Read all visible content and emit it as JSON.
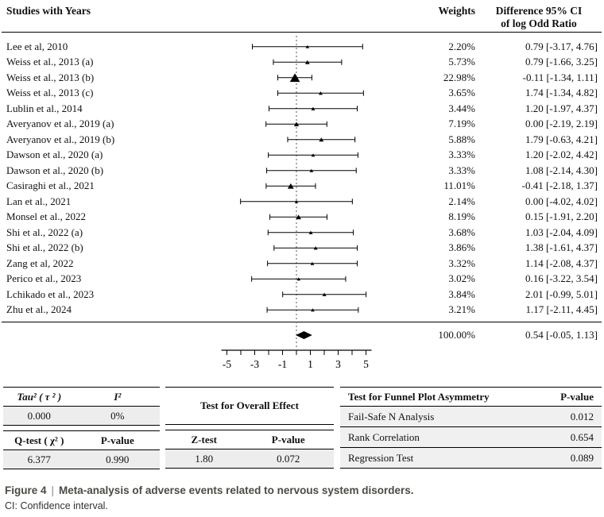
{
  "header": {
    "studies_col": "Studies with Years",
    "weights_col": "Weights",
    "ci_col_line1": "Difference 95% CI",
    "ci_col_line2": "of log Odd Ratio"
  },
  "chart_data": {
    "type": "forest",
    "xlabel": "",
    "x_axis": {
      "labeled_ticks": [
        -5,
        -3,
        -1,
        1,
        3,
        5
      ],
      "tick_step": 1,
      "range": [
        -5.4,
        5.4
      ],
      "zero_line": 0
    },
    "studies": [
      {
        "label": "Lee et al, 2010",
        "weight_pct": 2.2,
        "weight_label": "2.20%",
        "est": 0.79,
        "lo": -3.17,
        "hi": 4.76,
        "ci_label": "0.79 [-3.17, 4.76]"
      },
      {
        "label": "Weiss et al., 2013 (a)",
        "weight_pct": 5.73,
        "weight_label": "5.73%",
        "est": 0.79,
        "lo": -1.66,
        "hi": 3.25,
        "ci_label": "0.79 [-1.66, 3.25]"
      },
      {
        "label": "Weiss et al., 2013 (b)",
        "weight_pct": 22.98,
        "weight_label": "22.98%",
        "est": -0.11,
        "lo": -1.34,
        "hi": 1.11,
        "ci_label": "-0.11 [-1.34, 1.11]"
      },
      {
        "label": "Weiss et al., 2013 (c)",
        "weight_pct": 3.65,
        "weight_label": "3.65%",
        "est": 1.74,
        "lo": -1.34,
        "hi": 4.82,
        "ci_label": "1.74 [-1.34, 4.82]"
      },
      {
        "label": "Lublin et al., 2014",
        "weight_pct": 3.44,
        "weight_label": "3.44%",
        "est": 1.2,
        "lo": -1.97,
        "hi": 4.37,
        "ci_label": "1.20 [-1.97, 4.37]"
      },
      {
        "label": "Averyanov et al., 2019 (a)",
        "weight_pct": 7.19,
        "weight_label": "7.19%",
        "est": 0.0,
        "lo": -2.19,
        "hi": 2.19,
        "ci_label": "0.00 [-2.19, 2.19]"
      },
      {
        "label": "Averyanov et al., 2019 (b)",
        "weight_pct": 5.88,
        "weight_label": "5.88%",
        "est": 1.79,
        "lo": -0.63,
        "hi": 4.21,
        "ci_label": "1.79 [-0.63, 4.21]"
      },
      {
        "label": "Dawson et al., 2020 (a)",
        "weight_pct": 3.33,
        "weight_label": "3.33%",
        "est": 1.2,
        "lo": -2.02,
        "hi": 4.42,
        "ci_label": "1.20 [-2.02, 4.42]"
      },
      {
        "label": "Dawson et al., 2020 (b)",
        "weight_pct": 3.33,
        "weight_label": "3.33%",
        "est": 1.08,
        "lo": -2.14,
        "hi": 4.3,
        "ci_label": "1.08 [-2.14, 4.30]"
      },
      {
        "label": "Casiraghi et al., 2021",
        "weight_pct": 11.01,
        "weight_label": "11.01%",
        "est": -0.41,
        "lo": -2.18,
        "hi": 1.37,
        "ci_label": "-0.41 [-2.18, 1.37]"
      },
      {
        "label": "Lan et al., 2021",
        "weight_pct": 2.14,
        "weight_label": "2.14%",
        "est": 0.0,
        "lo": -4.02,
        "hi": 4.02,
        "ci_label": "0.00 [-4.02, 4.02]"
      },
      {
        "label": "Monsel et al., 2022",
        "weight_pct": 8.19,
        "weight_label": "8.19%",
        "est": 0.15,
        "lo": -1.91,
        "hi": 2.2,
        "ci_label": "0.15 [-1.91, 2.20]"
      },
      {
        "label": "Shi et al., 2022 (a)",
        "weight_pct": 3.68,
        "weight_label": "3.68%",
        "est": 1.03,
        "lo": -2.04,
        "hi": 4.09,
        "ci_label": "1.03 [-2.04, 4.09]"
      },
      {
        "label": "Shi et al., 2022 (b)",
        "weight_pct": 3.86,
        "weight_label": "3.86%",
        "est": 1.38,
        "lo": -1.61,
        "hi": 4.37,
        "ci_label": "1.38 [-1.61, 4.37]"
      },
      {
        "label": "Zang et al, 2022",
        "weight_pct": 3.32,
        "weight_label": "3.32%",
        "est": 1.14,
        "lo": -2.08,
        "hi": 4.37,
        "ci_label": "1.14 [-2.08, 4.37]"
      },
      {
        "label": "Perico et al., 2023",
        "weight_pct": 3.02,
        "weight_label": "3.02%",
        "est": 0.16,
        "lo": -3.22,
        "hi": 3.54,
        "ci_label": "0.16 [-3.22, 3.54]"
      },
      {
        "label": "Lchikado et al., 2023",
        "weight_pct": 3.84,
        "weight_label": "3.84%",
        "est": 2.01,
        "lo": -0.99,
        "hi": 5.01,
        "ci_label": "2.01 [-0.99, 5.01]"
      },
      {
        "label": "Zhu et al., 2024",
        "weight_pct": 3.21,
        "weight_label": "3.21%",
        "est": 1.17,
        "lo": -2.11,
        "hi": 4.45,
        "ci_label": "1.17 [-2.11, 4.45]"
      }
    ],
    "overall": {
      "weight_label": "100.00%",
      "est": 0.54,
      "lo": -0.05,
      "hi": 1.13,
      "ci_label": "0.54 [-0.05, 1.13]"
    }
  },
  "stats": {
    "heterogeneity": {
      "tau2_label": "Tau² ( τ ² )",
      "i2_label": "I²",
      "tau2": "0.000",
      "i2": "0%",
      "qtest_label": "Q-test ( χ² )",
      "pvalue_label": "P-value",
      "q": "6.377",
      "p": "0.990"
    },
    "overall_effect": {
      "title": "Test for Overall Effect",
      "ztest_label": "Z-test",
      "pvalue_label": "P-value",
      "z": "1.80",
      "p": "0.072"
    },
    "funnel": {
      "title": "Test for Funnel Plot Asymmetry",
      "pvalue_label": "P-value",
      "rows": [
        {
          "label": "Fail-Safe N Analysis",
          "p": "0.012"
        },
        {
          "label": "Rank Correlation",
          "p": "0.654"
        },
        {
          "label": "Regression Test",
          "p": "0.089"
        }
      ]
    }
  },
  "caption": {
    "figure_label": "Figure 4",
    "separator": "|",
    "title": "Meta-analysis of adverse events related to nervous system disorders.",
    "note": "CI: Confidence interval."
  }
}
